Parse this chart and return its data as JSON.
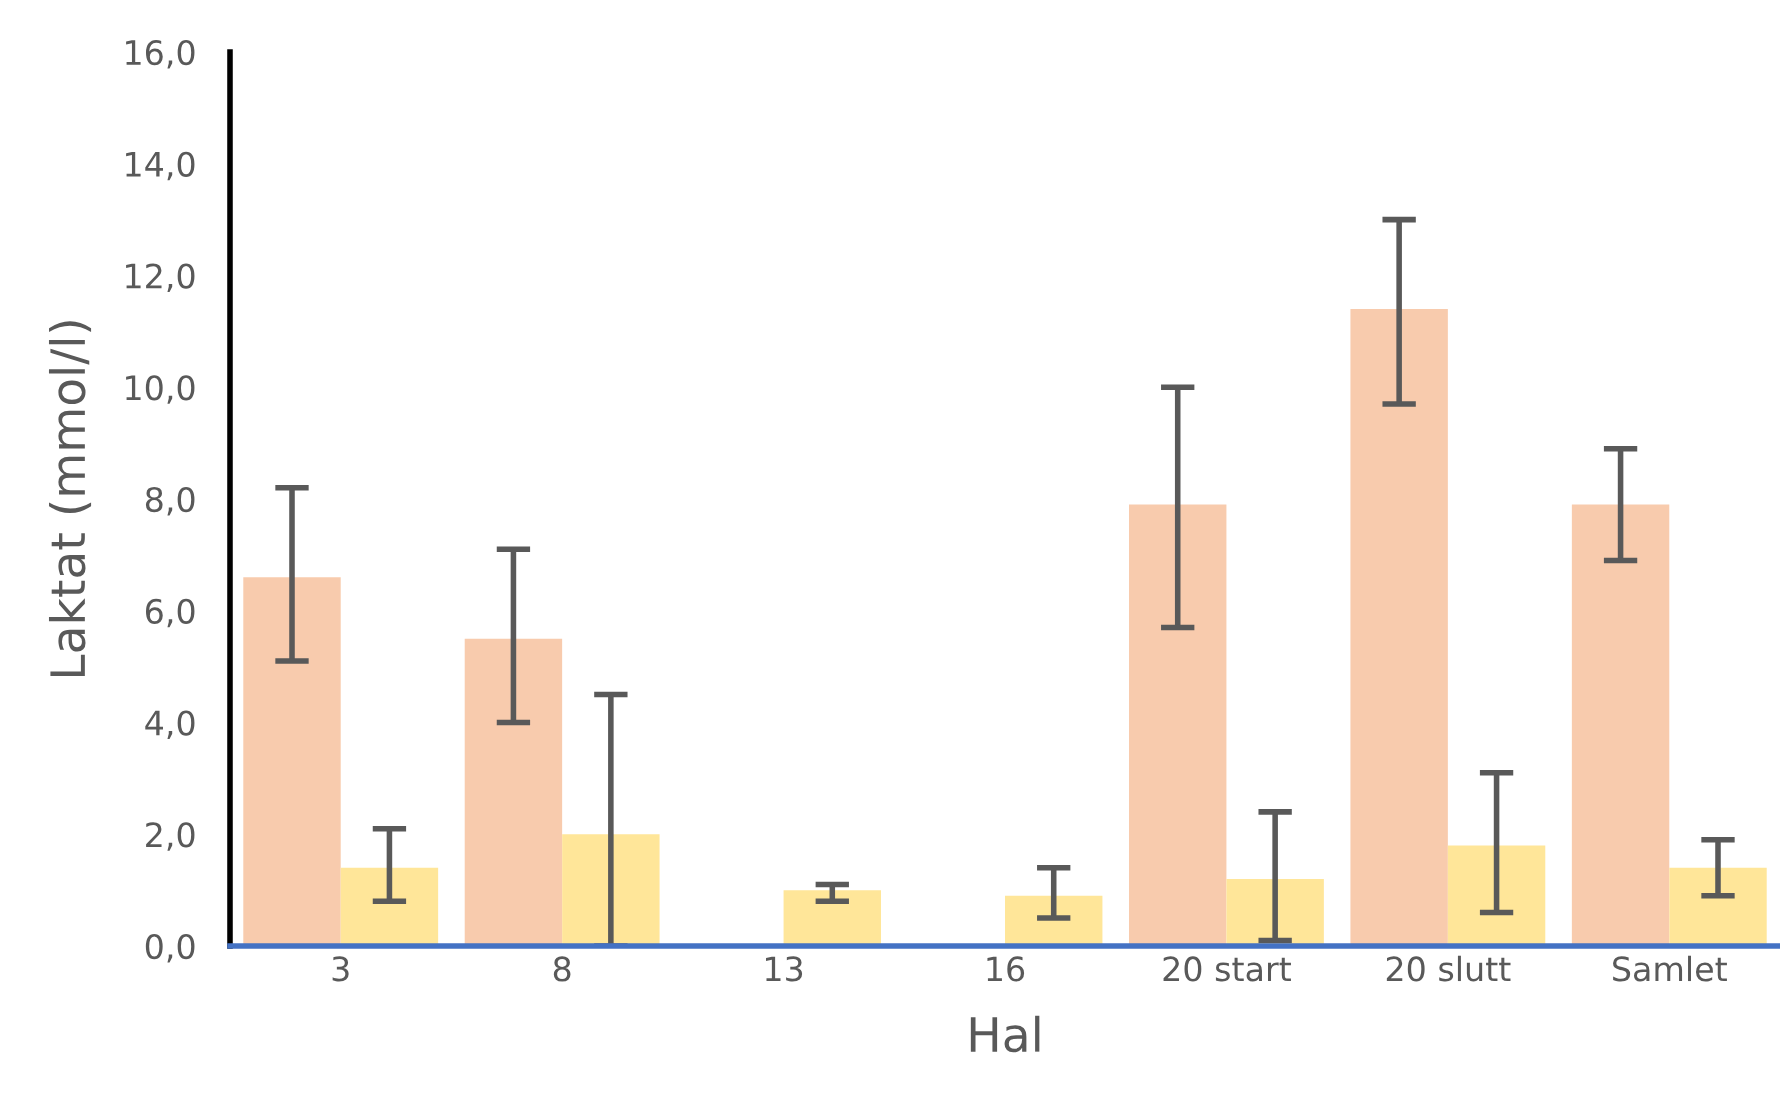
{
  "chart_data": {
    "type": "bar",
    "xlabel": "Hal",
    "ylabel": "Laktat (mmol/l)",
    "categories": [
      "3",
      "8",
      "13",
      "16",
      "20 start",
      "20 slutt",
      "Samlet"
    ],
    "series": [
      {
        "color": "#f8cbad",
        "values": [
          6.6,
          5.5,
          null,
          null,
          7.9,
          11.4,
          7.9
        ],
        "errors": [
          [
            5.1,
            8.2
          ],
          [
            4.0,
            7.1
          ],
          null,
          null,
          [
            5.7,
            10.0
          ],
          [
            9.7,
            13.0
          ],
          [
            6.9,
            8.9
          ]
        ]
      },
      {
        "color": "#ffe699",
        "values": [
          1.4,
          2.0,
          1.0,
          0.9,
          1.2,
          1.8,
          1.4
        ],
        "errors": [
          [
            0.8,
            2.1
          ],
          [
            0.0,
            4.5
          ],
          [
            0.8,
            1.1
          ],
          [
            0.5,
            1.4
          ],
          [
            0.1,
            2.4
          ],
          [
            0.6,
            3.1
          ],
          [
            0.9,
            1.9
          ]
        ]
      }
    ],
    "ylim": [
      0,
      16
    ],
    "yticks": [
      {
        "value": 0,
        "label": "0,0"
      },
      {
        "value": 2,
        "label": "2,0"
      },
      {
        "value": 4,
        "label": "4,0"
      },
      {
        "value": 6,
        "label": "6,0"
      },
      {
        "value": 8,
        "label": "8,0"
      },
      {
        "value": 10,
        "label": "10,0"
      },
      {
        "value": 12,
        "label": "12,0"
      },
      {
        "value": 14,
        "label": "14,0"
      },
      {
        "value": 16,
        "label": "16,0"
      }
    ],
    "grid": false,
    "legend": false
  }
}
